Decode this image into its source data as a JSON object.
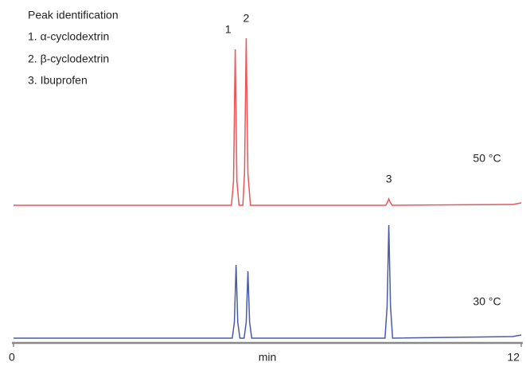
{
  "peak_identification": {
    "title": "Peak identification",
    "items": [
      "1. α-cyclodextrin",
      "2. β-cyclodextrin",
      "3. Ibuprofen"
    ]
  },
  "chart_data": [
    {
      "type": "line",
      "xlim": [
        0,
        12
      ],
      "ylim": [
        0,
        220
      ],
      "x": [
        0,
        5.15,
        5.2,
        5.24,
        5.28,
        5.33,
        5.42,
        5.46,
        5.5,
        5.54,
        5.6,
        8.8,
        8.84,
        8.87,
        8.9,
        8.95,
        11.8,
        12
      ],
      "series": [
        {
          "name": "50 °C",
          "color": "#e8565a",
          "values": [
            0,
            0,
            30,
            196,
            30,
            0,
            0,
            40,
            210,
            40,
            0,
            0,
            4,
            8,
            4,
            0,
            1,
            3
          ]
        }
      ],
      "annotations": [
        {
          "text": "1",
          "x": 5.24
        },
        {
          "text": "2",
          "x": 5.5
        },
        {
          "text": "3",
          "x": 8.87
        }
      ]
    },
    {
      "type": "line",
      "xlim": [
        0,
        12
      ],
      "ylim": [
        0,
        220
      ],
      "xticks": [
        0,
        12
      ],
      "xlabel": "min",
      "x": [
        0,
        5.17,
        5.22,
        5.26,
        5.3,
        5.35,
        5.45,
        5.5,
        5.54,
        5.58,
        5.63,
        8.78,
        8.83,
        8.87,
        8.91,
        8.96,
        11.8,
        12
      ],
      "series": [
        {
          "name": "30 °C",
          "color": "#4a5aa8",
          "values": [
            0,
            0,
            20,
            92,
            20,
            0,
            0,
            20,
            84,
            20,
            0,
            0,
            40,
            142,
            40,
            0,
            2,
            4
          ]
        }
      ]
    }
  ]
}
